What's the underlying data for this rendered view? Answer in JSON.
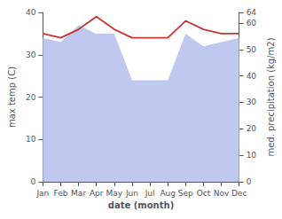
{
  "chart_data": {
    "type": "line",
    "categories": [
      "Jan",
      "Feb",
      "Mar",
      "Apr",
      "May",
      "Jun",
      "Jul",
      "Aug",
      "Sep",
      "Oct",
      "Nov",
      "Dec"
    ],
    "series": [
      {
        "type": "area",
        "color": "#bfc9f0",
        "values": [
          34,
          33,
          37,
          35,
          35,
          24,
          24,
          24,
          35,
          32,
          33,
          34
        ]
      },
      {
        "type": "line",
        "color": "#cc3333",
        "values": [
          35,
          34,
          36,
          39,
          36,
          34,
          34,
          34,
          38,
          36,
          35,
          35
        ]
      }
    ],
    "xlabel": "date (month)",
    "ylabel": "max temp (C)",
    "y2label": "med. precipitation (kg/m2)",
    "ylim": [
      0,
      40
    ],
    "yticks": [
      0,
      10,
      20,
      30,
      40
    ],
    "y2lim": [
      0,
      64
    ],
    "y2ticks": [
      0,
      10,
      20,
      30,
      40,
      50,
      60
    ],
    "grid": false
  }
}
